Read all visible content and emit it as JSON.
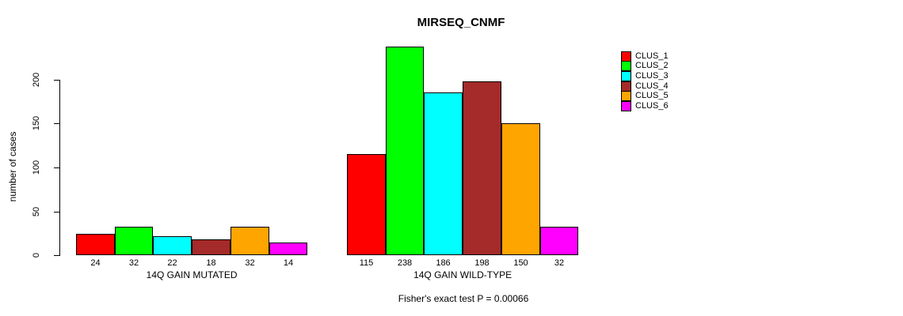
{
  "chart_data": {
    "type": "bar",
    "title": "MIRSEQ_CNMF",
    "ylabel": "number of cases",
    "xlabel": "",
    "yticks": [
      0,
      50,
      100,
      150,
      200
    ],
    "ylim": [
      0,
      240
    ],
    "grid": false,
    "legend_position": "right-outside",
    "categories": [
      "14Q GAIN MUTATED",
      "14Q GAIN WILD-TYPE"
    ],
    "groups": [
      {
        "label": "14Q GAIN MUTATED",
        "values": [
          24,
          32,
          22,
          18,
          32,
          14
        ]
      },
      {
        "label": "14Q GAIN WILD-TYPE",
        "values": [
          115,
          238,
          186,
          198,
          150,
          32
        ]
      }
    ],
    "series": [
      {
        "name": "CLUS_1",
        "color": "#FF0000",
        "values": [
          24,
          115
        ]
      },
      {
        "name": "CLUS_2",
        "color": "#00FF00",
        "values": [
          32,
          238
        ]
      },
      {
        "name": "CLUS_3",
        "color": "#00FFFF",
        "values": [
          22,
          186
        ]
      },
      {
        "name": "CLUS_4",
        "color": "#A52A2A",
        "values": [
          18,
          198
        ]
      },
      {
        "name": "CLUS_5",
        "color": "#FFA500",
        "values": [
          32,
          150
        ]
      },
      {
        "name": "CLUS_6",
        "color": "#FF00FF",
        "values": [
          14,
          32
        ]
      }
    ],
    "annotation": "Fisher's exact test P = 0.00066"
  }
}
